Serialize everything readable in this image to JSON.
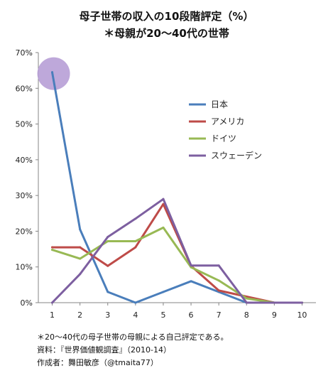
{
  "chart_data": {
    "type": "line",
    "title": "母子世帯の収入の10段階評定（%）",
    "subtitle": "＊母親が20～40代の世帯",
    "x": [
      1,
      2,
      3,
      4,
      5,
      6,
      7,
      8,
      9,
      10
    ],
    "ylim": [
      0,
      70
    ],
    "yticks": [
      "0%",
      "10%",
      "20%",
      "30%",
      "40%",
      "50%",
      "60%",
      "70%"
    ],
    "ytick_values": [
      0,
      10,
      20,
      30,
      40,
      50,
      60,
      70
    ],
    "grid": false,
    "legend_position": "right",
    "series": [
      {
        "name": "日本",
        "color": "#4a7ebb",
        "values": [
          64.5,
          20.5,
          3.0,
          0.0,
          3.0,
          6.0,
          3.0,
          0.0,
          0.0,
          0.0
        ]
      },
      {
        "name": "アメリカ",
        "color": "#be4b48",
        "values": [
          15.5,
          15.5,
          10.3,
          15.5,
          27.6,
          10.3,
          3.4,
          1.7,
          0.0,
          0.0
        ]
      },
      {
        "name": "ドイツ",
        "color": "#98b954",
        "values": [
          14.8,
          12.3,
          17.2,
          17.2,
          21.0,
          9.9,
          6.2,
          1.2,
          0.0,
          0.0
        ]
      },
      {
        "name": "スウェーデン",
        "color": "#7d5fa0",
        "values": [
          0.0,
          8.0,
          18.4,
          23.5,
          29.0,
          10.4,
          10.4,
          0.0,
          0.0,
          0.0
        ]
      }
    ],
    "highlight": {
      "series": "日本",
      "x": 1,
      "color": "#b79fd6"
    }
  },
  "notes": [
    "＊20～40代の母子世帯の母親による自己評定である。",
    "資料：『世界価値観調査』（2010-14）",
    "作成者：舞田敏彦（@tmaita77）"
  ]
}
